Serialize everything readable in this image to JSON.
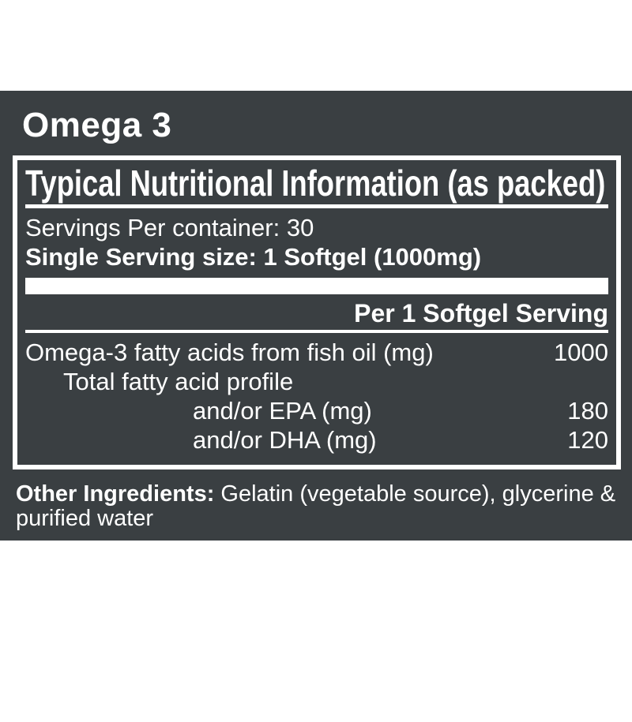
{
  "colors": {
    "panel_bg": "#3a3f42",
    "label_text": "#ffffff",
    "rule": "#ffffff"
  },
  "product": {
    "title": "Omega 3"
  },
  "facts": {
    "header": "Typical Nutritional Information (as packed)",
    "servings_line": "Servings Per container: 30",
    "serving_size_line": "Single Serving size: 1 Softgel (1000mg)",
    "column_header": "Per 1 Softgel Serving",
    "rows": [
      {
        "label": "Omega-3 fatty acids from fish oil (mg)",
        "value": "1000"
      },
      {
        "label": "Total fatty acid profile",
        "value": ""
      },
      {
        "label": "and/or EPA (mg)",
        "value": "180"
      },
      {
        "label": "and/or DHA (mg)",
        "value": "120"
      }
    ]
  },
  "other_ingredients": {
    "label": "Other Ingredients:",
    "line1": "Gelatin (vegetable source), glycerine &",
    "line2": "purified water"
  }
}
